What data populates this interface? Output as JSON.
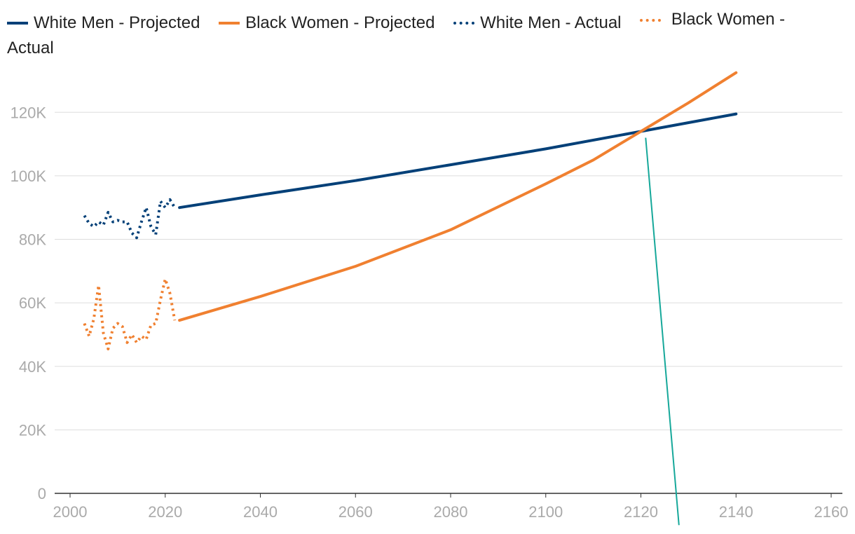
{
  "chart_data": {
    "type": "line",
    "title": "",
    "xlabel": "",
    "ylabel": "",
    "xlim": [
      2000,
      2160
    ],
    "ylim": [
      0,
      130000
    ],
    "x_ticks": [
      2000,
      2020,
      2040,
      2060,
      2080,
      2100,
      2120,
      2140,
      2160
    ],
    "x_tick_labels": [
      "2000",
      "2020",
      "2040",
      "2060",
      "2080",
      "2100",
      "2120",
      "2140",
      "2160"
    ],
    "y_ticks": [
      0,
      20000,
      40000,
      60000,
      80000,
      100000,
      120000
    ],
    "y_tick_labels": [
      "0",
      "20K",
      "40K",
      "60K",
      "80K",
      "100K",
      "120K"
    ],
    "grid": true,
    "legend_position": "top",
    "series": [
      {
        "name": "White Men - Projected",
        "color": "#034078",
        "style": "solid",
        "x": [
          2023,
          2040,
          2060,
          2080,
          2100,
          2120,
          2140
        ],
        "y": [
          90000,
          94000,
          98500,
          103500,
          108500,
          114000,
          119500
        ]
      },
      {
        "name": "Black Women - Projected",
        "color": "#f08030",
        "style": "solid",
        "x": [
          2023,
          2040,
          2060,
          2080,
          2100,
          2110,
          2120,
          2130,
          2140
        ],
        "y": [
          54500,
          62000,
          71500,
          83000,
          97500,
          105000,
          114000,
          123000,
          132500
        ]
      },
      {
        "name": "White Men - Actual",
        "color": "#034078",
        "style": "dotted",
        "x": [
          2003,
          2004,
          2005,
          2006,
          2007,
          2008,
          2009,
          2010,
          2011,
          2012,
          2013,
          2014,
          2015,
          2016,
          2017,
          2018,
          2019,
          2020,
          2021,
          2022
        ],
        "y": [
          87500,
          85000,
          84000,
          85500,
          84500,
          88500,
          85500,
          86000,
          85500,
          85500,
          82000,
          80500,
          85500,
          90000,
          84000,
          81500,
          92000,
          90000,
          92500,
          90000
        ]
      },
      {
        "name": "Black Women - Actual",
        "color": "#f08030",
        "style": "dotted",
        "x": [
          2003,
          2004,
          2005,
          2006,
          2007,
          2008,
          2009,
          2010,
          2011,
          2012,
          2013,
          2014,
          2015,
          2016,
          2017,
          2018,
          2019,
          2020,
          2021,
          2022
        ],
        "y": [
          53500,
          49500,
          55000,
          65500,
          50500,
          45500,
          52000,
          53500,
          52500,
          47500,
          50000,
          47500,
          49500,
          48500,
          53000,
          53500,
          61000,
          67500,
          63000,
          54500
        ]
      }
    ],
    "extra_line": {
      "color": "#16a89a",
      "x": [
        2121,
        2128
      ],
      "y": [
        112000,
        -10000
      ]
    }
  }
}
